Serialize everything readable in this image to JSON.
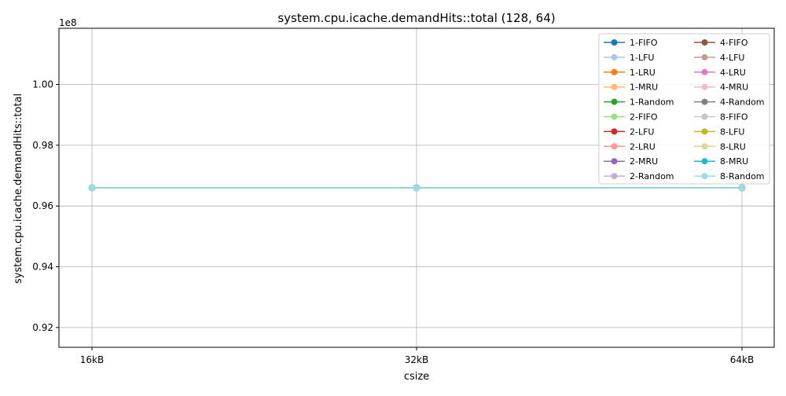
{
  "chart_data": {
    "type": "line",
    "title": "system.cpu.icache.demandHits::total (128, 64)",
    "xlabel": "csize",
    "ylabel": "system.cpu.icache.demandHits::total",
    "x": [
      "16kB",
      "32kB",
      "64kB"
    ],
    "y_offset_label": "1e8",
    "ylim": [
      0.9135,
      1.0185
    ],
    "yticks": [
      0.92,
      0.94,
      0.96,
      0.98,
      1.0
    ],
    "ytick_labels": [
      "0.92",
      "0.94",
      "0.96",
      "0.98",
      "1.00"
    ],
    "grid": true,
    "legend_position": "top-right",
    "legend_columns": 2,
    "series": [
      {
        "name": "1-FIFO",
        "color": "#1f77b4",
        "values": [
          0.966,
          0.966,
          0.966
        ]
      },
      {
        "name": "1-LFU",
        "color": "#aec7e8",
        "values": [
          0.966,
          0.966,
          0.966
        ]
      },
      {
        "name": "1-LRU",
        "color": "#ff7f0e",
        "values": [
          0.966,
          0.966,
          0.966
        ]
      },
      {
        "name": "1-MRU",
        "color": "#ffbb78",
        "values": [
          0.966,
          0.966,
          0.966
        ]
      },
      {
        "name": "1-Random",
        "color": "#2ca02c",
        "values": [
          0.966,
          0.966,
          0.966
        ]
      },
      {
        "name": "2-FIFO",
        "color": "#98df8a",
        "values": [
          0.966,
          0.966,
          0.966
        ]
      },
      {
        "name": "2-LFU",
        "color": "#d62728",
        "values": [
          0.966,
          0.966,
          0.966
        ]
      },
      {
        "name": "2-LRU",
        "color": "#ff9896",
        "values": [
          0.966,
          0.966,
          0.966
        ]
      },
      {
        "name": "2-MRU",
        "color": "#9467bd",
        "values": [
          0.966,
          0.966,
          0.966
        ]
      },
      {
        "name": "2-Random",
        "color": "#c5b0d5",
        "values": [
          0.966,
          0.966,
          0.966
        ]
      },
      {
        "name": "4-FIFO",
        "color": "#8c564b",
        "values": [
          0.966,
          0.966,
          0.966
        ]
      },
      {
        "name": "4-LFU",
        "color": "#c49c94",
        "values": [
          0.966,
          0.966,
          0.966
        ]
      },
      {
        "name": "4-LRU",
        "color": "#e377c2",
        "values": [
          0.966,
          0.966,
          0.966
        ]
      },
      {
        "name": "4-MRU",
        "color": "#f7b6d2",
        "values": [
          0.966,
          0.966,
          0.966
        ]
      },
      {
        "name": "4-Random",
        "color": "#7f7f7f",
        "values": [
          0.966,
          0.966,
          0.966
        ]
      },
      {
        "name": "8-FIFO",
        "color": "#c7c7c7",
        "values": [
          0.966,
          0.966,
          0.966
        ]
      },
      {
        "name": "8-LFU",
        "color": "#bcbd22",
        "values": [
          0.966,
          0.966,
          0.966
        ]
      },
      {
        "name": "8-LRU",
        "color": "#dbdb8d",
        "values": [
          0.966,
          0.966,
          0.966
        ]
      },
      {
        "name": "8-MRU",
        "color": "#17becf",
        "values": [
          0.966,
          0.966,
          0.966
        ]
      },
      {
        "name": "8-Random",
        "color": "#9edae5",
        "values": [
          0.966,
          0.966,
          0.966
        ]
      }
    ]
  }
}
